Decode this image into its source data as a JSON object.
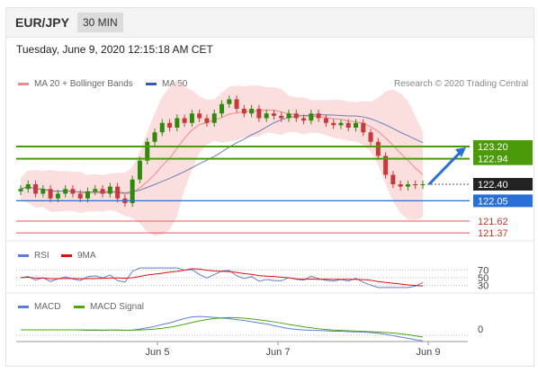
{
  "header": {
    "pair": "EUR/JPY",
    "timeframe": "30 MIN",
    "date": "Tuesday, June 9, 2020 12:15:18 AM CET"
  },
  "price_panel": {
    "legend_ma_bb": "MA 20 + Bollinger Bands",
    "legend_ma50": "MA 50",
    "credit": "Research © 2020 Trading Central"
  },
  "rsi_panel": {
    "legend_rsi": "RSI",
    "legend_ma": "9MA"
  },
  "macd_panel": {
    "legend_macd": "MACD",
    "legend_signal": "MACD Signal"
  },
  "colors": {
    "green": "#4a9a0c",
    "blue": "#2a6fd6",
    "red": "#e05a5a",
    "candle_up": "#2e8b0a",
    "candle_down": "#c83a3a",
    "bb": "#f7c2c2",
    "ma50": "#6a7fb8",
    "last_price_bg": "#222222"
  },
  "chart_data": {
    "type": "candlestick",
    "x_ticks": [
      "Jun 5",
      "Jun 7",
      "Jun 9"
    ],
    "price_levels": [
      {
        "label": "123.20",
        "value": 123.2,
        "kind": "resistance"
      },
      {
        "label": "122.94",
        "value": 122.94,
        "kind": "resistance"
      },
      {
        "label": "122.40",
        "value": 122.4,
        "kind": "last"
      },
      {
        "label": "122.05",
        "value": 122.05,
        "kind": "pivot"
      },
      {
        "label": "121.62",
        "value": 121.62,
        "kind": "support"
      },
      {
        "label": "121.37",
        "value": 121.37,
        "kind": "support"
      }
    ],
    "ylim": [
      121.2,
      124.4
    ],
    "close_series": [
      122.3,
      122.4,
      122.2,
      122.3,
      122.1,
      122.2,
      122.3,
      122.2,
      122.1,
      122.25,
      122.3,
      122.2,
      122.35,
      122.1,
      122.0,
      122.5,
      122.9,
      123.3,
      123.5,
      123.7,
      123.6,
      123.8,
      123.7,
      123.9,
      123.8,
      123.7,
      123.9,
      124.1,
      124.2,
      124.0,
      123.9,
      124.0,
      123.8,
      123.9,
      123.85,
      123.8,
      123.9,
      123.8,
      123.75,
      123.9,
      123.8,
      123.7,
      123.65,
      123.7,
      123.6,
      123.7,
      123.5,
      123.3,
      123.0,
      122.6,
      122.4,
      122.35,
      122.4,
      122.38,
      122.4
    ],
    "rsi": {
      "levels": [
        70,
        50,
        30
      ]
    },
    "macd": {
      "levels": [
        0
      ]
    },
    "arrow": {
      "direction": "up",
      "from_value": 122.4,
      "to_value": 123.2
    }
  }
}
